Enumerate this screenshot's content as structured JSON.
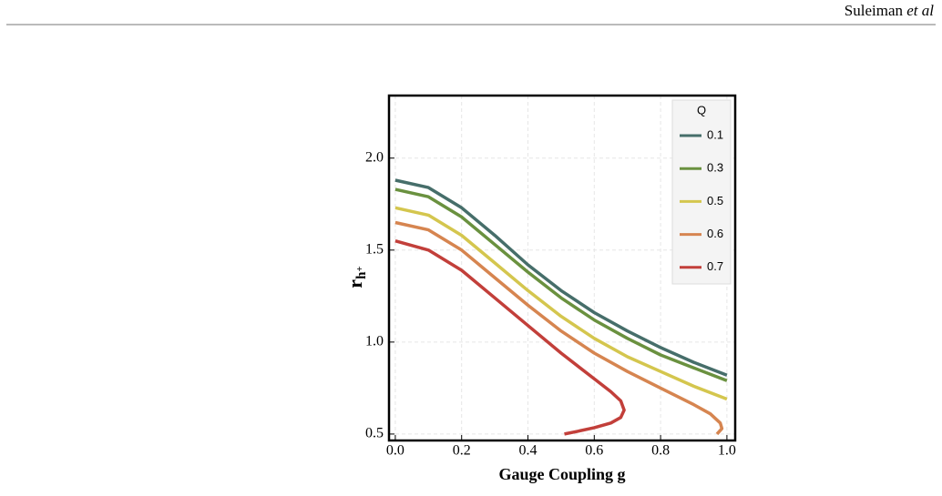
{
  "header": {
    "author": "Suleiman",
    "etal": "et al"
  },
  "chart_data": {
    "type": "line",
    "x_label": "Gauge Coupling g",
    "y_label": "r",
    "y_label_sub": "h",
    "y_label_subsup": "+",
    "legend_title": "Q",
    "legend": "top-right",
    "grid": true,
    "xlim": [
      -0.019,
      1.025
    ],
    "ylim": [
      0.465,
      2.34
    ],
    "xticks": [
      {
        "value": 0,
        "label": "0.0"
      },
      {
        "value": 0.2,
        "label": "0.2"
      },
      {
        "value": 0.4,
        "label": "0.4"
      },
      {
        "value": 0.6,
        "label": "0.6"
      },
      {
        "value": 0.8,
        "label": "0.8"
      },
      {
        "value": 1,
        "label": "1.0"
      }
    ],
    "yticks": [
      {
        "value": 0.5,
        "label": "0.5"
      },
      {
        "value": 1,
        "label": "1.0"
      },
      {
        "value": 1.5,
        "label": "1.5"
      },
      {
        "value": 2,
        "label": "2.0"
      }
    ],
    "series": [
      {
        "name": "0.1",
        "color": "#466e6a",
        "x": [
          0,
          0.1,
          0.2,
          0.3,
          0.4,
          0.5,
          0.6,
          0.7,
          0.8,
          0.9,
          1.0
        ],
        "values": [
          1.88,
          1.84,
          1.73,
          1.58,
          1.42,
          1.28,
          1.16,
          1.06,
          0.97,
          0.89,
          0.82
        ]
      },
      {
        "name": "0.3",
        "color": "#6a913f",
        "x": [
          0,
          0.1,
          0.2,
          0.3,
          0.4,
          0.5,
          0.6,
          0.7,
          0.8,
          0.9,
          1.0
        ],
        "values": [
          1.83,
          1.79,
          1.68,
          1.53,
          1.38,
          1.24,
          1.12,
          1.02,
          0.93,
          0.86,
          0.79
        ]
      },
      {
        "name": "0.5",
        "color": "#d4c64e",
        "x": [
          0,
          0.1,
          0.2,
          0.3,
          0.4,
          0.5,
          0.6,
          0.7,
          0.8,
          0.9,
          1.0
        ],
        "values": [
          1.73,
          1.69,
          1.58,
          1.43,
          1.28,
          1.14,
          1.02,
          0.92,
          0.84,
          0.76,
          0.69
        ]
      },
      {
        "name": "0.6",
        "color": "#d68550",
        "x": [
          0,
          0.1,
          0.2,
          0.3,
          0.4,
          0.5,
          0.6,
          0.7,
          0.8,
          0.9,
          0.95,
          0.98,
          0.985,
          0.975,
          0.97
        ],
        "values": [
          1.65,
          1.61,
          1.5,
          1.35,
          1.2,
          1.06,
          0.94,
          0.84,
          0.75,
          0.66,
          0.61,
          0.56,
          0.53,
          0.51,
          0.5
        ]
      },
      {
        "name": "0.7",
        "color": "#c23f3a",
        "x": [
          0,
          0.1,
          0.2,
          0.3,
          0.4,
          0.5,
          0.6,
          0.65,
          0.68,
          0.69,
          0.68,
          0.65,
          0.6,
          0.55,
          0.51
        ],
        "values": [
          1.55,
          1.5,
          1.39,
          1.24,
          1.09,
          0.94,
          0.8,
          0.73,
          0.68,
          0.63,
          0.59,
          0.56,
          0.535,
          0.515,
          0.5
        ]
      }
    ]
  }
}
